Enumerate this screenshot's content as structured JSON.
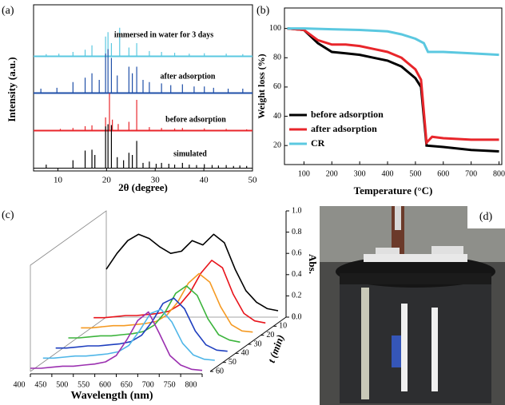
{
  "chart_data": [
    {
      "type": "stick",
      "label": "(a)",
      "xlabel": "2θ (degree)",
      "ylabel": "Intensity (a.u.)",
      "xlim": [
        5,
        50
      ],
      "xticks": [
        10,
        20,
        30,
        40,
        50
      ],
      "series": [
        {
          "name": "immersed in water for 3 days",
          "color": "#5bc8e0",
          "x": [
            7.6,
            10.2,
            13.1,
            15.6,
            17.0,
            19.8,
            20.3,
            21.0,
            22.7,
            24.6,
            26.2,
            28.8,
            31.3,
            34.0,
            37.0,
            40.1,
            44.6,
            48.0
          ],
          "values": [
            5,
            6,
            10,
            15,
            25,
            45,
            55,
            30,
            65,
            20,
            30,
            12,
            10,
            8,
            6,
            7,
            6,
            5
          ]
        },
        {
          "name": "after adsorption",
          "color": "#1f4fa8",
          "x": [
            6.5,
            9.8,
            13.1,
            15.6,
            17.0,
            18.5,
            19.8,
            20.3,
            21.0,
            22.2,
            24.6,
            25.3,
            26.2,
            27.5,
            28.8,
            31.3,
            33.2,
            35.6,
            38.0,
            40.1,
            42.0,
            45.0,
            48.0
          ],
          "values": [
            10,
            12,
            25,
            35,
            45,
            30,
            90,
            100,
            80,
            40,
            60,
            45,
            60,
            30,
            25,
            22,
            18,
            20,
            15,
            15,
            12,
            10,
            10
          ]
        },
        {
          "name": "before adsorption",
          "color": "#e8262b",
          "x": [
            10.5,
            13.1,
            15.6,
            17.0,
            19.8,
            20.6,
            21.2,
            22.4,
            24.6,
            26.2,
            28.8,
            31.3,
            34.0,
            35.6,
            40.1,
            44.6,
            48.8
          ],
          "values": [
            4,
            6,
            10,
            12,
            30,
            85,
            25,
            15,
            20,
            70,
            8,
            6,
            5,
            6,
            5,
            4,
            3
          ]
        },
        {
          "name": "simulated",
          "color": "#000000",
          "x": [
            7.6,
            13.1,
            15.6,
            17.0,
            17.6,
            19.8,
            20.3,
            21.0,
            22.2,
            23.5,
            24.6,
            25.3,
            26.2,
            27.5,
            28.8,
            30.2,
            31.3,
            32.8,
            34.0,
            35.6,
            37.0,
            38.5,
            40.1,
            41.7,
            43.0,
            44.6,
            46.1,
            47.4,
            48.8
          ],
          "values": [
            8,
            18,
            40,
            42,
            30,
            95,
            100,
            98,
            25,
            18,
            35,
            30,
            62,
            12,
            15,
            10,
            12,
            10,
            8,
            12,
            8,
            7,
            9,
            7,
            6,
            7,
            5,
            6,
            5
          ]
        }
      ]
    },
    {
      "type": "line",
      "label": "(b)",
      "xlabel": "Temperature (°C)",
      "ylabel": "Weight loss (%)",
      "xlim": [
        30,
        810
      ],
      "xticks": [
        100,
        200,
        300,
        400,
        500,
        600,
        700,
        800
      ],
      "ylim": [
        7,
        114
      ],
      "yticks": [
        20,
        40,
        60,
        80,
        100
      ],
      "legend": "lower left",
      "series": [
        {
          "name": "before adsorption",
          "color": "#000000",
          "x": [
            40,
            100,
            150,
            200,
            250,
            300,
            350,
            400,
            450,
            500,
            520,
            540,
            600,
            700,
            800
          ],
          "values": [
            100,
            99,
            90,
            84,
            83,
            82,
            80,
            78,
            74,
            66,
            60,
            20,
            19,
            17,
            16
          ]
        },
        {
          "name": "after adsorption",
          "color": "#e8262b",
          "x": [
            40,
            100,
            150,
            200,
            250,
            300,
            350,
            400,
            450,
            500,
            520,
            540,
            560,
            600,
            700,
            800
          ],
          "values": [
            100,
            99,
            92,
            89,
            89,
            88,
            86,
            84,
            80,
            72,
            65,
            22,
            26,
            25,
            24,
            24
          ]
        },
        {
          "name": "CR",
          "color": "#5bc8e0",
          "x": [
            40,
            100,
            200,
            300,
            400,
            450,
            500,
            530,
            545,
            600,
            700,
            800
          ],
          "values": [
            100,
            100,
            99.5,
            99,
            98,
            96,
            93,
            90,
            84,
            84,
            83,
            82
          ]
        }
      ]
    },
    {
      "type": "waterfall",
      "label": "(c)",
      "xlabel": "Wavelength (nm)",
      "ylabel": "Abs.",
      "zlabel": "t (min)",
      "x": [
        400,
        425,
        450,
        475,
        500,
        525,
        550,
        575,
        600,
        625,
        650,
        675,
        700,
        725,
        750,
        775,
        800
      ],
      "xlim": [
        400,
        800
      ],
      "xticks": [
        400,
        450,
        500,
        550,
        600,
        650,
        700,
        750,
        800
      ],
      "ylim": [
        0,
        1
      ],
      "yticks": [
        {
          "value": 0,
          "label": "0.0"
        },
        0.2,
        0.4,
        0.6,
        0.8,
        {
          "value": 1,
          "label": "1.0"
        }
      ],
      "zlim": [
        0,
        60
      ],
      "zticks": [
        0,
        10,
        20,
        30,
        40,
        50,
        60
      ],
      "series": [
        {
          "t": 0,
          "color": "#000000",
          "values": [
            0.45,
            0.6,
            0.72,
            0.78,
            0.74,
            0.66,
            0.6,
            0.62,
            0.72,
            0.68,
            0.78,
            0.7,
            0.45,
            0.25,
            0.14,
            0.08,
            0.06
          ]
        },
        {
          "t": 10,
          "color": "#e8141b",
          "values": [
            0.08,
            0.08,
            0.09,
            0.1,
            0.1,
            0.11,
            0.12,
            0.14,
            0.2,
            0.32,
            0.5,
            0.62,
            0.55,
            0.3,
            0.12,
            0.05,
            0.03
          ]
        },
        {
          "t": 20,
          "color": "#f59a23",
          "values": [
            0.07,
            0.07,
            0.08,
            0.09,
            0.09,
            0.1,
            0.11,
            0.13,
            0.19,
            0.31,
            0.49,
            0.58,
            0.5,
            0.27,
            0.1,
            0.04,
            0.03
          ]
        },
        {
          "t": 30,
          "color": "#3cb43c",
          "values": [
            0.06,
            0.06,
            0.07,
            0.08,
            0.08,
            0.09,
            0.1,
            0.12,
            0.18,
            0.3,
            0.48,
            0.55,
            0.46,
            0.24,
            0.09,
            0.04,
            0.02
          ]
        },
        {
          "t": 40,
          "color": "#1f3fbf",
          "values": [
            0.05,
            0.05,
            0.06,
            0.07,
            0.07,
            0.08,
            0.09,
            0.11,
            0.17,
            0.3,
            0.47,
            0.52,
            0.42,
            0.21,
            0.08,
            0.03,
            0.02
          ]
        },
        {
          "t": 50,
          "color": "#4fb6e8",
          "values": [
            0.04,
            0.04,
            0.05,
            0.06,
            0.06,
            0.07,
            0.08,
            0.1,
            0.16,
            0.3,
            0.46,
            0.5,
            0.38,
            0.18,
            0.07,
            0.03,
            0.02
          ]
        },
        {
          "t": 60,
          "color": "#9b30b0",
          "values": [
            0.03,
            0.03,
            0.04,
            0.05,
            0.05,
            0.06,
            0.07,
            0.09,
            0.15,
            0.3,
            0.48,
            0.56,
            0.36,
            0.15,
            0.06,
            0.02,
            0.01
          ]
        }
      ]
    }
  ],
  "photo": {
    "label": "(d)"
  }
}
